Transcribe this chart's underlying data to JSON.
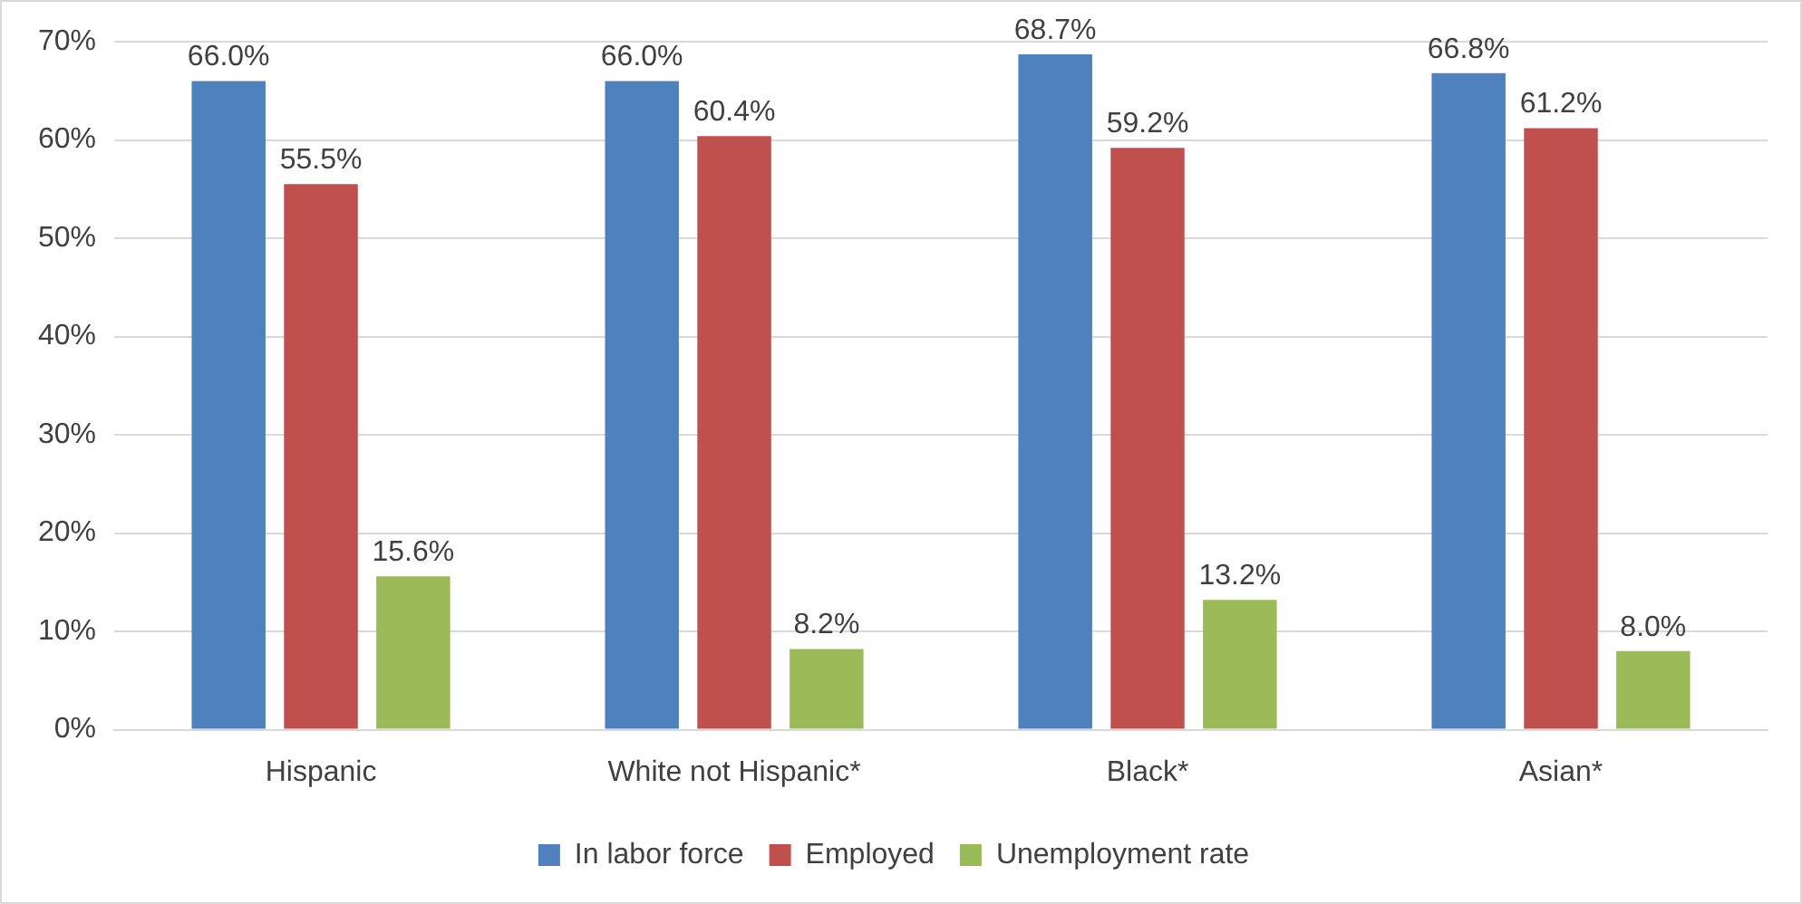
{
  "chart_data": {
    "type": "bar",
    "categories": [
      "Hispanic",
      "White not Hispanic*",
      "Black*",
      "Asian*"
    ],
    "series": [
      {
        "name": "In labor force",
        "color": "#4f81bd",
        "values": [
          66.0,
          66.0,
          68.7,
          66.8
        ],
        "value_labels": [
          "66.0%",
          "66.0%",
          "68.7%",
          "66.8%"
        ]
      },
      {
        "name": "Employed",
        "color": "#c0504d",
        "values": [
          55.5,
          60.4,
          59.2,
          61.2
        ],
        "value_labels": [
          "55.5%",
          "60.4%",
          "59.2%",
          "61.2%"
        ]
      },
      {
        "name": "Unemployment rate",
        "color": "#9bbb59",
        "values": [
          15.6,
          8.2,
          13.2,
          8.0
        ],
        "value_labels": [
          "15.6%",
          "8.2%",
          "13.2%",
          "8.0%"
        ]
      }
    ],
    "ylim": [
      0,
      70
    ],
    "yticks": [
      {
        "value": 0,
        "label": "0%"
      },
      {
        "value": 10,
        "label": "10%"
      },
      {
        "value": 20,
        "label": "20%"
      },
      {
        "value": 30,
        "label": "30%"
      },
      {
        "value": 40,
        "label": "40%"
      },
      {
        "value": 50,
        "label": "50%"
      },
      {
        "value": 60,
        "label": "60%"
      },
      {
        "value": 70,
        "label": "70%"
      }
    ],
    "grid": "y",
    "legend": "bottom"
  }
}
